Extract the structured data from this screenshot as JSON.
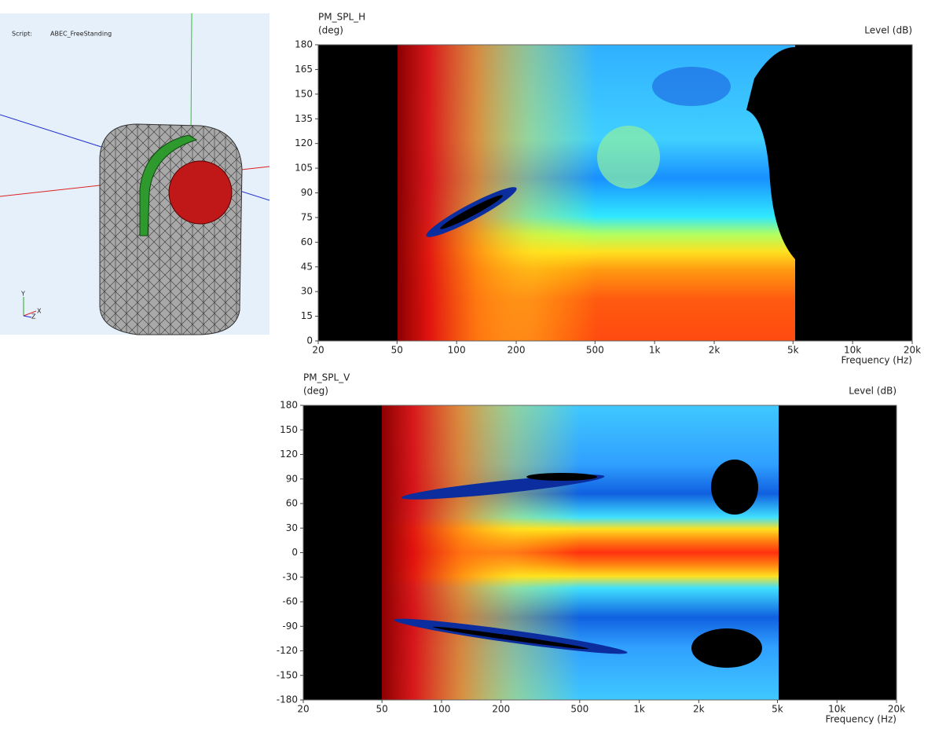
{
  "viewer": {
    "script_label": "Script:",
    "script_name": "ABEC_FreeStanding",
    "axis_y": "Y",
    "axis_x": "X",
    "axis_z": "Z"
  },
  "chart_data": [
    {
      "type": "heatmap",
      "title": "PM_SPL_H",
      "y_label": "(deg)",
      "level_label": "Level  (dB)",
      "x_label": "Frequency  (Hz)",
      "log_x": true,
      "xlim": [
        20,
        20000
      ],
      "xticks": [
        20,
        50,
        100,
        200,
        500,
        {
          "value": 1000,
          "label": "1k"
        },
        {
          "value": 2000,
          "label": "2k"
        },
        {
          "value": 5000,
          "label": "5k"
        },
        {
          "value": 10000,
          "label": "10k"
        },
        {
          "value": 20000,
          "label": "20k"
        }
      ],
      "ylim": [
        0,
        180
      ],
      "yticks": [
        0,
        15,
        30,
        45,
        60,
        75,
        90,
        105,
        120,
        135,
        150,
        165,
        180
      ]
    },
    {
      "type": "heatmap",
      "title": "PM_SPL_V",
      "y_label": "(deg)",
      "level_label": "Level  (dB)",
      "x_label": "Frequency  (Hz)",
      "log_x": true,
      "xlim": [
        20,
        20000
      ],
      "xticks": [
        20,
        50,
        100,
        200,
        500,
        {
          "value": 1000,
          "label": "1k"
        },
        {
          "value": 2000,
          "label": "2k"
        },
        {
          "value": 5000,
          "label": "5k"
        },
        {
          "value": 10000,
          "label": "10k"
        },
        {
          "value": 20000,
          "label": "20k"
        }
      ],
      "ylim": [
        -180,
        180
      ],
      "yticks": [
        -180,
        -150,
        -120,
        -90,
        -60,
        -30,
        0,
        30,
        60,
        90,
        120,
        150,
        180
      ]
    }
  ]
}
